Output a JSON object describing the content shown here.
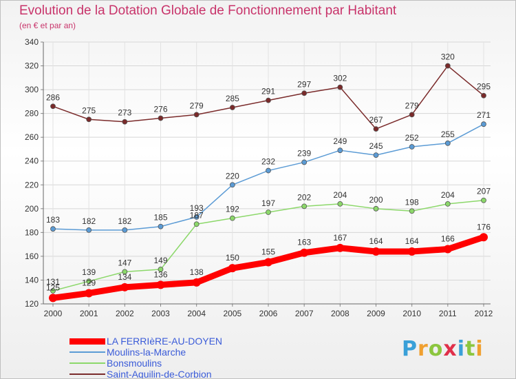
{
  "header": {
    "title": "Evolution de la Dotation Globale de Fonctionnement par Habitant",
    "subtitle": "(en € et par an)"
  },
  "logo": {
    "text": "Proxiti",
    "colors": [
      "#3aa0d8",
      "#f0a030",
      "#8cc63f",
      "#e0304a",
      "#3aa0d8",
      "#8cc63f",
      "#f0a030"
    ]
  },
  "chart_data": {
    "type": "line",
    "x": [
      "2000",
      "2001",
      "2002",
      "2003",
      "2004",
      "2005",
      "2006",
      "2007",
      "2008",
      "2009",
      "2010",
      "2011",
      "2012"
    ],
    "ylim": [
      120,
      340
    ],
    "yticks": [
      120,
      140,
      160,
      180,
      200,
      220,
      240,
      260,
      280,
      300,
      320,
      340
    ],
    "grid": true,
    "legend_position": "bottom-left",
    "series": [
      {
        "name": "LA FERRIèRE-AU-DOYEN",
        "color": "#ff0000",
        "values": [
          125,
          129,
          134,
          136,
          138,
          150,
          155,
          163,
          167,
          164,
          164,
          166,
          176
        ]
      },
      {
        "name": "Moulins-la-Marche",
        "color": "#5b9bd5",
        "values": [
          183,
          182,
          182,
          185,
          193,
          220,
          232,
          239,
          249,
          245,
          252,
          255,
          271
        ]
      },
      {
        "name": "Bonsmoulins",
        "color": "#8cd86a",
        "values": [
          131,
          139,
          147,
          149,
          187,
          192,
          197,
          202,
          204,
          200,
          198,
          204,
          207
        ]
      },
      {
        "name": "Saint-Aquilin-de-Corbion",
        "color": "#7a2a2a",
        "values": [
          286,
          275,
          273,
          276,
          279,
          285,
          291,
          297,
          302,
          267,
          279,
          320,
          295
        ]
      }
    ]
  }
}
